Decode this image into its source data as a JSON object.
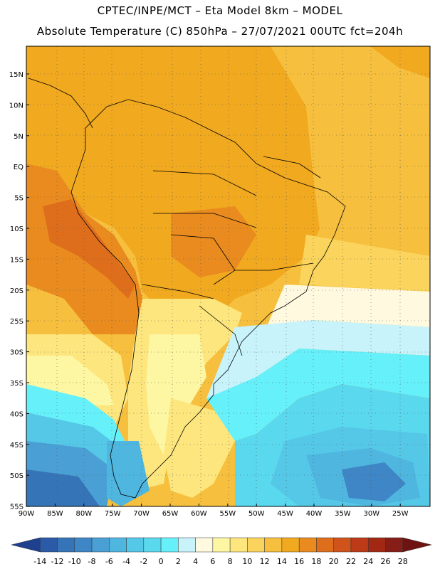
{
  "header": {
    "line1": "CPTEC/INPE/MCT –  Eta Model 8km – MODEL",
    "line2": "Absolute Temperature (C) 850hPa – 27/07/2021 00UTC fct=204h"
  },
  "map": {
    "lat_labels": [
      "15N",
      "10N",
      "5N",
      "EQ",
      "5S",
      "10S",
      "15S",
      "20S",
      "25S",
      "30S",
      "35S",
      "40S",
      "45S",
      "50S",
      "55S"
    ],
    "lon_labels": [
      "90W",
      "85W",
      "80W",
      "75W",
      "70W",
      "65W",
      "60W",
      "55W",
      "50W",
      "45W",
      "40W",
      "35W",
      "30W",
      "25W"
    ],
    "extent": {
      "lon_min": -90,
      "lon_max": -23,
      "lat_min": -55,
      "lat_max": 19
    },
    "grid": true
  },
  "colorbar": {
    "ticks": [
      "-14",
      "-12",
      "-10",
      "-8",
      "-6",
      "-4",
      "-2",
      "0",
      "2",
      "4",
      "6",
      "8",
      "10",
      "12",
      "14",
      "16",
      "18",
      "20",
      "22",
      "24",
      "26",
      "28"
    ],
    "colors": [
      "#1f3f8f",
      "#2a5aa8",
      "#3674b8",
      "#3f86c6",
      "#4aa0d4",
      "#4fb6e0",
      "#55c8e8",
      "#5ad8ee",
      "#66f0fa",
      "#c8f3fb",
      "#fffadf",
      "#fdf6a2",
      "#fde67e",
      "#fad45c",
      "#f6bf3d",
      "#f1a91f",
      "#e98b1f",
      "#de6e1c",
      "#cf531a",
      "#bc3a17",
      "#a22814",
      "#861d16",
      "#6e1212"
    ]
  }
}
